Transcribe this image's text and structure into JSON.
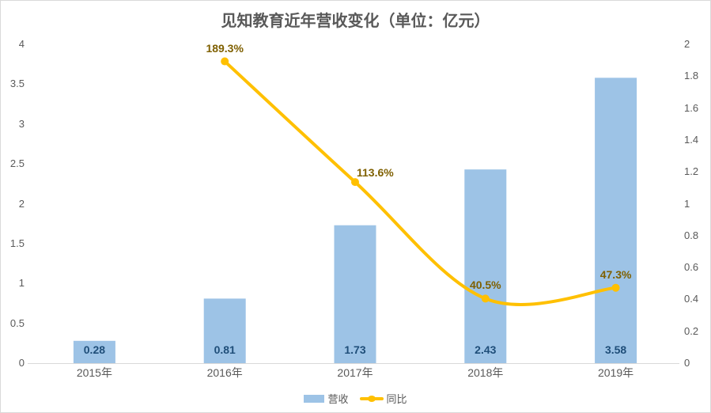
{
  "chart_data": {
    "type": "combo",
    "title": "见知教育近年营收变化（单位：亿元）",
    "categories": [
      "2015年",
      "2016年",
      "2017年",
      "2018年",
      "2019年"
    ],
    "series": [
      {
        "name": "营收",
        "type": "bar",
        "axis": "left",
        "color": "#9DC3E6",
        "label_color": "#1F4E79",
        "values": [
          0.28,
          0.81,
          1.73,
          2.43,
          3.58
        ],
        "labels": [
          "0.28",
          "0.81",
          "1.73",
          "2.43",
          "3.58"
        ]
      },
      {
        "name": "同比",
        "type": "line",
        "axis": "right",
        "smooth": true,
        "color": "#FFC000",
        "label_color": "#7F6000",
        "values": [
          null,
          1.893,
          1.136,
          0.405,
          0.473
        ],
        "labels": [
          null,
          "189.3%",
          "113.6%",
          "40.5%",
          "47.3%"
        ]
      }
    ],
    "left_axis": {
      "min": 0,
      "max": 4,
      "step": 0.5,
      "ticks": [
        "4",
        "3.5",
        "3",
        "2.5",
        "2",
        "1.5",
        "1",
        "0.5",
        "0"
      ]
    },
    "right_axis": {
      "min": 0,
      "max": 2,
      "step": 0.2,
      "ticks": [
        "2",
        "1.8",
        "1.6",
        "1.4",
        "1.2",
        "1",
        "0.8",
        "0.6",
        "0.4",
        "0.2",
        "0"
      ]
    },
    "legend": {
      "position": "bottom",
      "items": [
        {
          "label": "营收",
          "swatch": "bar",
          "color": "#9DC3E6"
        },
        {
          "label": "同比",
          "swatch": "line-marker",
          "color": "#FFC000"
        }
      ]
    },
    "grid": false,
    "background": "#FFFFFF",
    "frame_color": "#D9D9D9",
    "axis_line_color": "#D9D9D9",
    "text_color": "#595959"
  }
}
